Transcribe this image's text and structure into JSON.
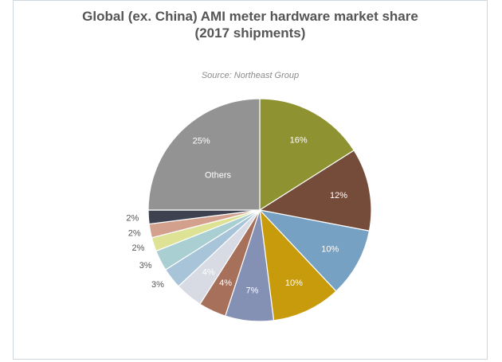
{
  "chart_data": {
    "type": "pie",
    "title_line1": "Global (ex. China) AMI meter hardware market share",
    "title_line2": "(2017 shipments)",
    "subtitle": "Source: Northeast Group",
    "start": "12 o'clock",
    "direction": "clockwise",
    "slices": [
      {
        "value": 16,
        "label": "16%",
        "color": "#8f9230",
        "label_inside": true
      },
      {
        "value": 12,
        "label": "12%",
        "color": "#754c3a",
        "label_inside": true
      },
      {
        "value": 10,
        "label": "10%",
        "color": "#76a1c3",
        "label_inside": true
      },
      {
        "value": 10,
        "label": "10%",
        "color": "#c89b0c",
        "label_inside": true
      },
      {
        "value": 7,
        "label": "7%",
        "color": "#8590b5",
        "label_inside": true
      },
      {
        "value": 4,
        "label": "4%",
        "color": "#a7705a",
        "label_inside": true
      },
      {
        "value": 4,
        "label": "4%",
        "color": "#d8dae4",
        "label_inside": true
      },
      {
        "value": 3,
        "label": "3%",
        "color": "#a8c4d8",
        "label_inside": false
      },
      {
        "value": 3,
        "label": "3%",
        "color": "#a9cfd2",
        "label_inside": false
      },
      {
        "value": 2,
        "label": "2%",
        "color": "#dee295",
        "label_inside": false
      },
      {
        "value": 2,
        "label": "2%",
        "color": "#d3a08d",
        "label_inside": false
      },
      {
        "value": 2,
        "label": "2%",
        "color": "#3d4150",
        "label_inside": false
      },
      {
        "value": 25,
        "label": "25%",
        "name": "Others",
        "color": "#939393",
        "label_inside": true
      }
    ]
  }
}
